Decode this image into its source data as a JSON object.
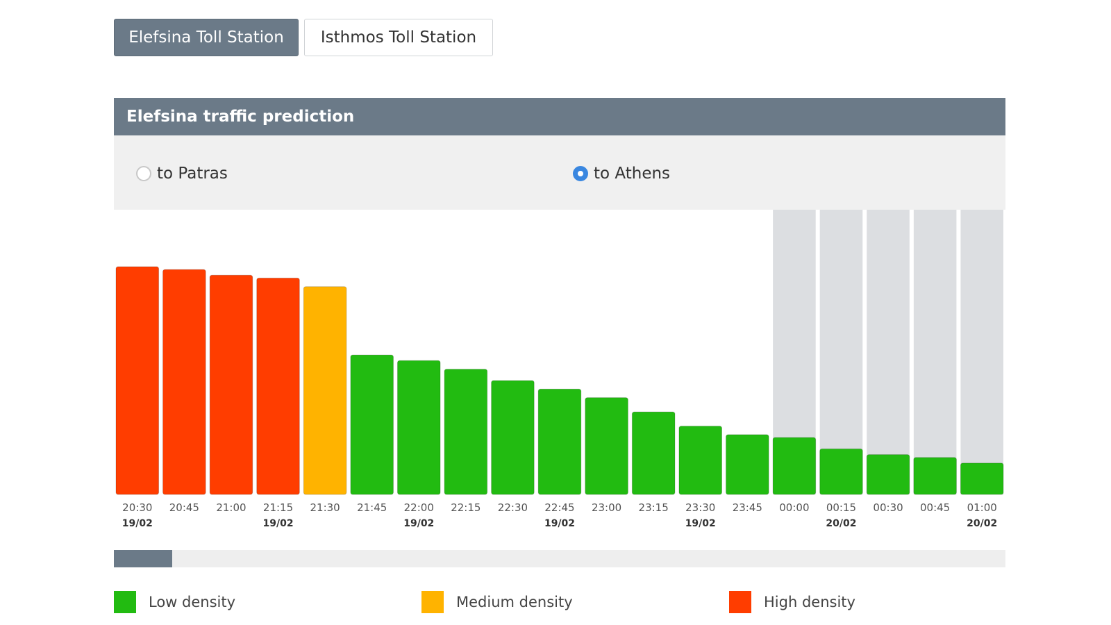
{
  "tabs": [
    {
      "label": "Elefsina Toll Station",
      "active": true
    },
    {
      "label": "Isthmos Toll Station",
      "active": false
    }
  ],
  "panel": {
    "title": "Elefsina traffic prediction"
  },
  "directions": [
    {
      "label": "to Patras",
      "checked": false
    },
    {
      "label": "to Athens",
      "checked": true
    }
  ],
  "colors": {
    "low": "#22bb11",
    "medium": "#ffb300",
    "high": "#ff3d00",
    "history_bg": "#ffffff",
    "forecast_bg": "#dcdee1",
    "accent": "#6b7a88"
  },
  "legend": [
    {
      "label": "Low density",
      "level": "low"
    },
    {
      "label": "Medium density",
      "level": "medium"
    },
    {
      "label": "High density",
      "level": "high"
    }
  ],
  "chart_data": {
    "type": "bar",
    "title": "",
    "xlabel": "",
    "ylabel": "",
    "ylim": [
      0,
      100
    ],
    "grid": false,
    "categories": [
      "20:30",
      "20:45",
      "21:00",
      "21:15",
      "21:30",
      "21:45",
      "22:00",
      "22:15",
      "22:30",
      "22:45",
      "23:00",
      "23:15",
      "23:30",
      "23:45",
      "00:00",
      "00:15",
      "00:30",
      "00:45",
      "01:00"
    ],
    "date_labels": [
      "19/02",
      "",
      "",
      "19/02",
      "",
      "",
      "19/02",
      "",
      "",
      "19/02",
      "",
      "",
      "19/02",
      "",
      "",
      "20/02",
      "",
      "",
      "20/02"
    ],
    "values": [
      80,
      79,
      77,
      76,
      73,
      49,
      47,
      44,
      40,
      37,
      34,
      29,
      24,
      21,
      20,
      16,
      14,
      13,
      11
    ],
    "levels": [
      "high",
      "high",
      "high",
      "high",
      "medium",
      "low",
      "low",
      "low",
      "low",
      "low",
      "low",
      "low",
      "low",
      "low",
      "low",
      "low",
      "low",
      "low",
      "low"
    ],
    "shaded_from_index": 14
  },
  "scrollbar": {
    "position": 0.0
  }
}
